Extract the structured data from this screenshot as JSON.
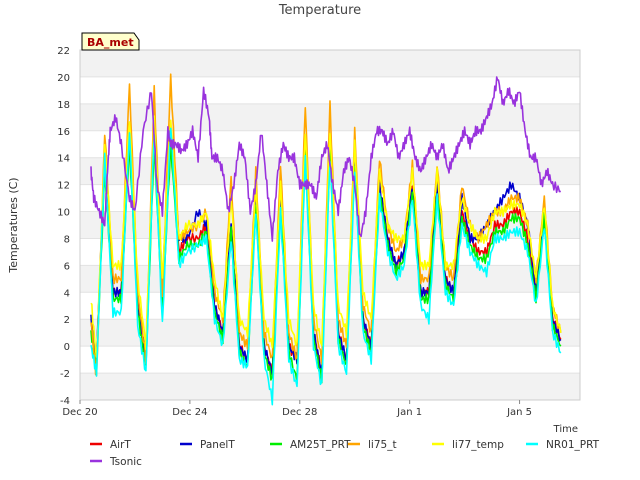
{
  "chart_data": {
    "type": "line",
    "title": "Temperature",
    "xlabel": "Time",
    "ylabel": "Temperatures (C)",
    "site_label": "BA_met",
    "ylim": [
      -4,
      22
    ],
    "xlim": [
      0,
      18.2
    ],
    "yticks": [
      -4,
      -2,
      0,
      2,
      4,
      6,
      8,
      10,
      12,
      14,
      16,
      18,
      20,
      22
    ],
    "xticks": [
      {
        "value": 0,
        "label": "Dec 20"
      },
      {
        "value": 4,
        "label": "Dec 24"
      },
      {
        "value": 8,
        "label": "Dec 28"
      },
      {
        "value": 12,
        "label": "Jan 1"
      },
      {
        "value": 16,
        "label": "Jan 5"
      }
    ],
    "x_unit": "days since Dec 20",
    "grid": "horizontal bands",
    "legend_position": "bottom",
    "series": [
      {
        "name": "AirT",
        "color": "#ee0000",
        "x": [
          0.4,
          0.6,
          0.9,
          1.2,
          1.5,
          1.8,
          2.1,
          2.4,
          2.7,
          3.0,
          3.3,
          3.6,
          3.9,
          4.3,
          4.6,
          4.9,
          5.2,
          5.5,
          5.8,
          6.1,
          6.4,
          6.7,
          7.0,
          7.3,
          7.6,
          7.9,
          8.2,
          8.5,
          8.8,
          9.1,
          9.4,
          9.7,
          10.0,
          10.3,
          10.6,
          10.9,
          11.2,
          11.5,
          11.8,
          12.1,
          12.4,
          12.7,
          13.0,
          13.3,
          13.6,
          13.9,
          14.2,
          14.5,
          14.8,
          15.1,
          15.4,
          15.7,
          16.0,
          16.3,
          16.6,
          16.9,
          17.2,
          17.5
        ],
        "y": [
          2,
          -1,
          14,
          4,
          4,
          16,
          3,
          -1,
          16,
          3,
          16,
          7,
          8,
          8,
          9,
          3,
          1,
          9,
          0,
          -1,
          11,
          0,
          -2,
          11,
          0,
          -1,
          15,
          1,
          -2,
          15,
          1,
          -1,
          14,
          2,
          0,
          12,
          8,
          6,
          7,
          12,
          4,
          4,
          12,
          5,
          4,
          10,
          8,
          7,
          7,
          9,
          9,
          10,
          10,
          8,
          4,
          10,
          2,
          0.5
        ]
      },
      {
        "name": "PanelT",
        "color": "#0000cc",
        "x": [
          0.4,
          0.6,
          0.9,
          1.2,
          1.5,
          1.8,
          2.1,
          2.4,
          2.7,
          3.0,
          3.3,
          3.6,
          3.9,
          4.3,
          4.6,
          4.9,
          5.2,
          5.5,
          5.8,
          6.1,
          6.4,
          6.7,
          7.0,
          7.3,
          7.6,
          7.9,
          8.2,
          8.5,
          8.8,
          9.1,
          9.4,
          9.7,
          10.0,
          10.3,
          10.6,
          10.9,
          11.2,
          11.5,
          11.8,
          12.1,
          12.4,
          12.7,
          13.0,
          13.3,
          13.6,
          13.9,
          14.2,
          14.5,
          14.8,
          15.1,
          15.4,
          15.7,
          16.0,
          16.3,
          16.6,
          16.9,
          17.2,
          17.5
        ],
        "y": [
          2,
          -1,
          14,
          4,
          4,
          16,
          3,
          -1,
          16,
          3,
          16,
          8,
          8,
          10,
          9,
          3,
          1,
          9,
          0,
          -1,
          11,
          0,
          -2,
          11,
          0,
          -1,
          15,
          1,
          -2,
          15,
          1,
          -1,
          14,
          2,
          0,
          12,
          8,
          6,
          7,
          12,
          4,
          4,
          12,
          5,
          4,
          11,
          8,
          8,
          9,
          10,
          11,
          12,
          11,
          9,
          4,
          10,
          2,
          0.5
        ]
      },
      {
        "name": "AM25T_PRT",
        "color": "#00ee00",
        "x": [
          0.4,
          0.6,
          0.9,
          1.2,
          1.5,
          1.8,
          2.1,
          2.4,
          2.7,
          3.0,
          3.3,
          3.6,
          3.9,
          4.3,
          4.6,
          4.9,
          5.2,
          5.5,
          5.8,
          6.1,
          6.4,
          6.7,
          7.0,
          7.3,
          7.6,
          7.9,
          8.2,
          8.5,
          8.8,
          9.1,
          9.4,
          9.7,
          10.0,
          10.3,
          10.6,
          10.9,
          11.2,
          11.5,
          11.8,
          12.1,
          12.4,
          12.7,
          13.0,
          13.3,
          13.6,
          13.9,
          14.2,
          14.5,
          14.8,
          15.1,
          15.4,
          15.7,
          16.0,
          16.3,
          16.6,
          16.9,
          17.2,
          17.5
        ],
        "y": [
          1,
          -1.5,
          13,
          3.5,
          3.5,
          15,
          2.5,
          -1.5,
          15,
          2.5,
          15,
          6.5,
          7.5,
          7.5,
          8.5,
          2.5,
          0.5,
          8.5,
          -0.5,
          -1.5,
          10.5,
          -0.5,
          -2.5,
          10.5,
          -0.5,
          -2.5,
          14.5,
          0.5,
          -2.5,
          14.5,
          0.5,
          -1.5,
          13.5,
          1.5,
          -0.5,
          11.5,
          7.5,
          5.5,
          6.5,
          11.5,
          3.5,
          3.5,
          11.5,
          4.5,
          3.5,
          9.5,
          7.5,
          6.5,
          6.5,
          8.5,
          8.5,
          9.5,
          9.5,
          7.5,
          3.5,
          9.5,
          1.5,
          0
        ]
      },
      {
        "name": "li75_t",
        "color": "#ffa500",
        "x": [
          0.4,
          0.6,
          0.9,
          1.2,
          1.5,
          1.8,
          2.1,
          2.4,
          2.7,
          3.0,
          3.3,
          3.6,
          3.9,
          4.3,
          4.6,
          4.9,
          5.2,
          5.5,
          5.8,
          6.1,
          6.4,
          6.7,
          7.0,
          7.3,
          7.6,
          7.9,
          8.2,
          8.5,
          8.8,
          9.1,
          9.4,
          9.7,
          10.0,
          10.3,
          10.6,
          10.9,
          11.2,
          11.5,
          11.8,
          12.1,
          12.4,
          12.7,
          13.0,
          13.3,
          13.6,
          13.9,
          14.2,
          14.5,
          14.8,
          15.1,
          15.4,
          15.7,
          16.0,
          16.3,
          16.6,
          16.9,
          17.2,
          17.5
        ],
        "y": [
          2,
          -2.5,
          16,
          5,
          5,
          19.5,
          4,
          -1,
          19,
          4,
          20,
          8,
          8.5,
          9,
          10,
          4,
          2,
          12.5,
          1,
          0,
          13,
          1,
          -1,
          13.5,
          1,
          -1,
          18,
          2,
          -1,
          18,
          2,
          0,
          16,
          3,
          1,
          14,
          9,
          7,
          8,
          13.5,
          5,
          5,
          13.5,
          6,
          5,
          12,
          9,
          8,
          9,
          10,
          10,
          11,
          11,
          9,
          5,
          11,
          3,
          1
        ]
      },
      {
        "name": "li77_temp",
        "color": "#ffff00",
        "x": [
          0.4,
          0.6,
          0.9,
          1.2,
          1.5,
          1.8,
          2.1,
          2.4,
          2.7,
          3.0,
          3.3,
          3.6,
          3.9,
          4.3,
          4.6,
          4.9,
          5.2,
          5.5,
          5.8,
          6.1,
          6.4,
          6.7,
          7.0,
          7.3,
          7.6,
          7.9,
          8.2,
          8.5,
          8.8,
          9.1,
          9.4,
          9.7,
          10.0,
          10.3,
          10.6,
          10.9,
          11.2,
          11.5,
          11.8,
          12.1,
          12.4,
          12.7,
          13.0,
          13.3,
          13.6,
          13.9,
          14.2,
          14.5,
          14.8,
          15.1,
          15.4,
          15.7,
          16.0,
          16.3,
          16.6,
          16.9,
          17.2,
          17.5
        ],
        "y": [
          3.5,
          -1,
          15,
          6,
          6,
          17,
          5,
          0,
          17,
          5,
          17,
          8,
          9,
          9,
          10,
          5,
          2,
          11,
          2,
          1,
          12,
          2,
          0,
          12,
          2,
          0,
          16,
          3,
          0,
          16,
          3,
          1,
          15,
          4,
          2,
          13,
          9,
          8,
          8,
          13,
          6,
          6,
          13,
          6,
          6,
          11,
          9,
          8,
          8,
          10,
          10,
          10.5,
          10.5,
          9,
          5,
          10.5,
          3,
          1
        ]
      },
      {
        "name": "NR01_PRT",
        "color": "#00ffff",
        "x": [
          0.4,
          0.6,
          0.9,
          1.2,
          1.5,
          1.8,
          2.1,
          2.4,
          2.7,
          3.0,
          3.3,
          3.6,
          3.9,
          4.3,
          4.6,
          4.9,
          5.2,
          5.5,
          5.8,
          6.1,
          6.4,
          6.7,
          7.0,
          7.3,
          7.6,
          7.9,
          8.2,
          8.5,
          8.8,
          9.1,
          9.4,
          9.7,
          10.0,
          10.3,
          10.6,
          10.9,
          11.2,
          11.5,
          11.8,
          12.1,
          12.4,
          12.7,
          13.0,
          13.3,
          13.6,
          13.9,
          14.2,
          14.5,
          14.8,
          15.1,
          15.4,
          15.7,
          16.0,
          16.3,
          16.6,
          16.9,
          17.2,
          17.5
        ],
        "y": [
          0,
          -2,
          14,
          2.5,
          2.5,
          16,
          1.5,
          -2,
          16,
          1.5,
          16.5,
          6,
          7,
          7.5,
          8,
          2,
          0,
          8,
          -1,
          -1.5,
          10,
          -1,
          -4,
          10,
          -1,
          -3,
          14,
          0,
          -3,
          14,
          0,
          -2,
          13,
          1,
          -1,
          11,
          7,
          5,
          6,
          11,
          3,
          2,
          11,
          4,
          3,
          9,
          7,
          6,
          5.5,
          8,
          8,
          8.5,
          8.5,
          7,
          3,
          9,
          1,
          -0.5
        ]
      },
      {
        "name": "Tsonic",
        "color": "#9933dd",
        "x": [
          0.4,
          0.5,
          0.7,
          0.9,
          1.0,
          1.1,
          1.3,
          1.5,
          1.8,
          2.0,
          2.3,
          2.6,
          2.8,
          3.0,
          3.2,
          3.3,
          3.5,
          3.7,
          3.9,
          4.1,
          4.3,
          4.5,
          4.7,
          4.8,
          5.0,
          5.2,
          5.4,
          5.6,
          5.8,
          6.0,
          6.2,
          6.4,
          6.6,
          6.8,
          7.0,
          7.2,
          7.4,
          7.6,
          7.8,
          8.0,
          8.2,
          8.4,
          8.6,
          8.8,
          9.0,
          9.2,
          9.4,
          9.6,
          9.8,
          10.0,
          10.2,
          10.4,
          10.6,
          10.8,
          11.0,
          11.2,
          11.4,
          11.6,
          11.8,
          12.0,
          12.2,
          12.4,
          12.6,
          12.8,
          13.0,
          13.2,
          13.4,
          13.6,
          13.8,
          14.0,
          14.2,
          14.4,
          14.6,
          14.8,
          15.0,
          15.2,
          15.4,
          15.6,
          15.8,
          16.0,
          16.2,
          16.4,
          16.6,
          16.8,
          17.0,
          17.2,
          17.5
        ],
        "y": [
          13,
          11,
          10,
          9,
          13,
          16,
          17,
          15,
          11,
          10,
          16,
          19,
          12,
          10,
          16,
          15,
          15,
          14.5,
          15,
          16,
          14,
          19,
          17,
          14,
          14,
          13,
          10,
          12,
          15,
          14,
          10,
          12,
          16,
          12,
          8,
          13,
          15,
          14,
          14,
          12,
          12,
          12,
          11,
          14,
          15,
          12,
          10,
          13,
          14,
          12,
          8,
          10,
          14,
          16,
          16,
          15,
          16,
          14,
          15,
          16,
          14,
          13,
          14,
          15,
          14,
          15,
          13,
          14,
          15,
          16,
          15,
          16,
          16,
          17,
          18,
          20,
          18,
          19,
          18,
          19,
          16,
          14,
          14,
          12,
          13,
          12,
          11.5
        ]
      }
    ]
  }
}
